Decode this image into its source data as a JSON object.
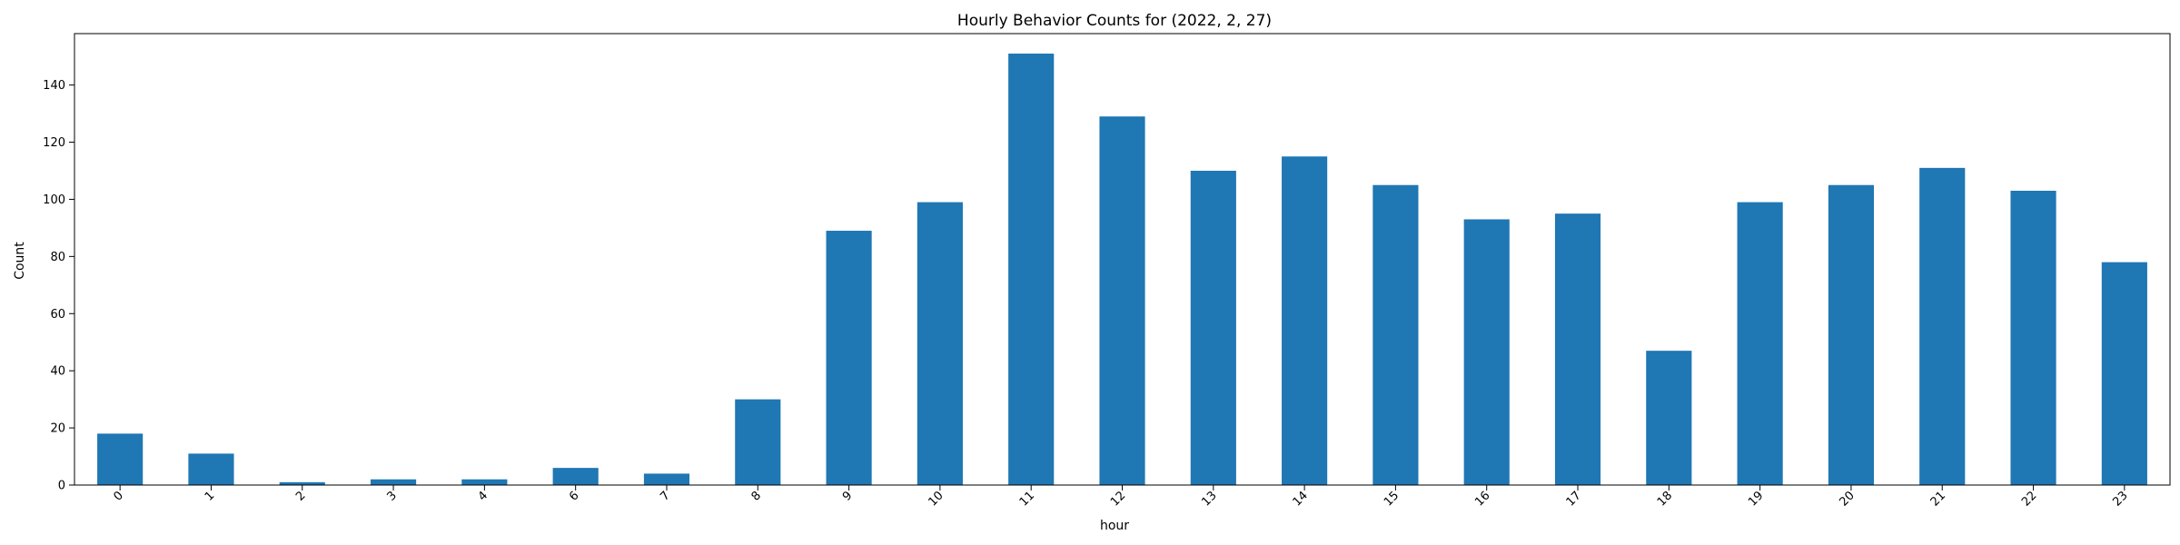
{
  "chart_data": {
    "type": "bar",
    "title": "Hourly Behavior Counts for (2022, 2, 27)",
    "xlabel": "hour",
    "ylabel": "Count",
    "categories": [
      "0",
      "1",
      "2",
      "3",
      "4",
      "6",
      "7",
      "8",
      "9",
      "10",
      "11",
      "12",
      "13",
      "14",
      "15",
      "16",
      "17",
      "18",
      "19",
      "20",
      "21",
      "22",
      "23"
    ],
    "values": [
      18,
      11,
      1,
      2,
      2,
      6,
      4,
      30,
      89,
      99,
      151,
      129,
      110,
      115,
      105,
      93,
      95,
      47,
      99,
      105,
      111,
      103,
      78
    ],
    "ylim": [
      0,
      158
    ],
    "yticks": [
      0,
      20,
      40,
      60,
      80,
      100,
      120,
      140
    ],
    "bar_color": "#1f77b4",
    "grid": false,
    "legend": "none"
  }
}
